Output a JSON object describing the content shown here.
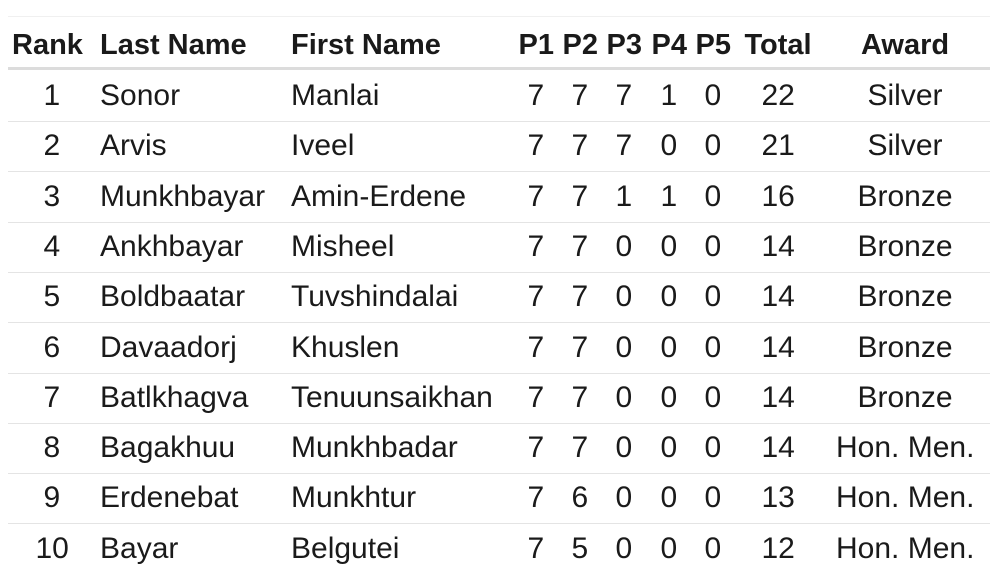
{
  "table": {
    "columns": [
      "Rank",
      "Last Name",
      "First Name",
      "P1",
      "P2",
      "P3",
      "P4",
      "P5",
      "Total",
      "Award"
    ],
    "rows": [
      [
        1,
        "Sonor",
        "Manlai",
        7,
        7,
        7,
        1,
        0,
        22,
        "Silver"
      ],
      [
        2,
        "Arvis",
        "Iveel",
        7,
        7,
        7,
        0,
        0,
        21,
        "Silver"
      ],
      [
        3,
        "Munkhbayar",
        "Amin-Erdene",
        7,
        7,
        1,
        1,
        0,
        16,
        "Bronze"
      ],
      [
        4,
        "Ankhbayar",
        "Misheel",
        7,
        7,
        0,
        0,
        0,
        14,
        "Bronze"
      ],
      [
        5,
        "Boldbaatar",
        "Tuvshindalai",
        7,
        7,
        0,
        0,
        0,
        14,
        "Bronze"
      ],
      [
        6,
        "Davaadorj",
        "Khuslen",
        7,
        7,
        0,
        0,
        0,
        14,
        "Bronze"
      ],
      [
        7,
        "Batlkhagva",
        "Tenuunsaikhan",
        7,
        7,
        0,
        0,
        0,
        14,
        "Bronze"
      ],
      [
        8,
        "Bagakhuu",
        "Munkhbadar",
        7,
        7,
        0,
        0,
        0,
        14,
        "Hon. Men."
      ],
      [
        9,
        "Erdenebat",
        "Munkhtur",
        7,
        6,
        0,
        0,
        0,
        13,
        "Hon. Men."
      ],
      [
        10,
        "Bayar",
        "Belgutei",
        7,
        5,
        0,
        0,
        0,
        12,
        "Hon. Men."
      ]
    ]
  }
}
